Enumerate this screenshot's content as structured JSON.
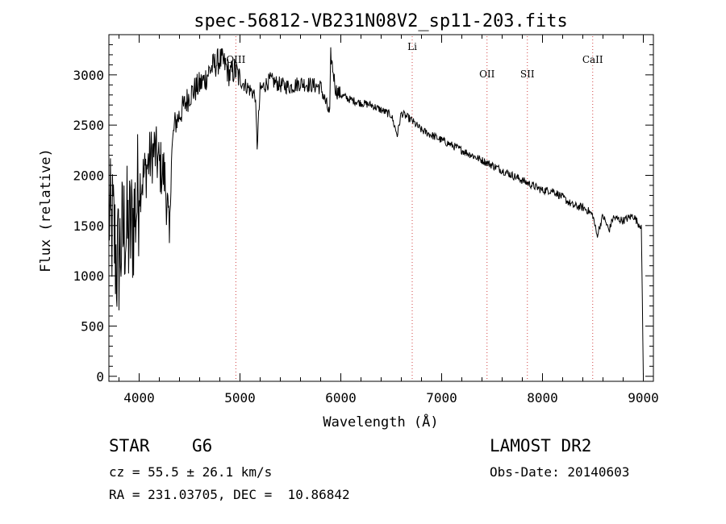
{
  "chart_data": {
    "type": "line",
    "title": "spec-56812-VB231N08V2_sp11-203.fits",
    "xlabel": "Wavelength (Å)",
    "ylabel": "Flux (relative)",
    "xlim": [
      3700,
      9100
    ],
    "ylim": [
      -50,
      3400
    ],
    "xticks": [
      4000,
      5000,
      6000,
      7000,
      8000,
      9000
    ],
    "yticks": [
      0,
      500,
      1000,
      1500,
      2000,
      2500,
      3000
    ],
    "grid": false,
    "spectral_lines": [
      {
        "name": "OIII",
        "x": 4959,
        "color": "#d04040"
      },
      {
        "name": "Li",
        "x": 6708,
        "color": "#d04040"
      },
      {
        "name": "OII",
        "x": 7450,
        "color": "#d04040"
      },
      {
        "name": "SII",
        "x": 7850,
        "color": "#d04040"
      },
      {
        "name": "CaII",
        "x": 8498,
        "color": "#d04040"
      }
    ],
    "series": [
      {
        "color": "#000000",
        "x": [
          3700,
          3720,
          3740,
          3760,
          3780,
          3800,
          3830,
          3860,
          3890,
          3920,
          3950,
          3980,
          4000,
          4050,
          4100,
          4150,
          4200,
          4250,
          4280,
          4300,
          4320,
          4350,
          4400,
          4450,
          4500,
          4550,
          4600,
          4650,
          4700,
          4750,
          4800,
          4850,
          4900,
          4950,
          5000,
          5050,
          5100,
          5150,
          5170,
          5200,
          5250,
          5300,
          5400,
          5500,
          5600,
          5700,
          5800,
          5890,
          5900,
          5950,
          6000,
          6100,
          6200,
          6300,
          6400,
          6500,
          6560,
          6600,
          6700,
          6800,
          6900,
          7000,
          7100,
          7200,
          7300,
          7400,
          7500,
          7600,
          7700,
          7800,
          7900,
          8000,
          8100,
          8200,
          8300,
          8400,
          8450,
          8500,
          8540,
          8600,
          8660,
          8700,
          8800,
          8900,
          8950,
          8980,
          9000
        ],
        "y": [
          1700,
          1400,
          1500,
          1300,
          1100,
          1200,
          1350,
          1500,
          1400,
          1450,
          1600,
          1750,
          1900,
          2000,
          2150,
          2250,
          2100,
          2000,
          1700,
          1300,
          2200,
          2500,
          2600,
          2700,
          2800,
          2850,
          2900,
          2950,
          3050,
          3100,
          3150,
          3100,
          3000,
          3050,
          2950,
          2900,
          2850,
          2800,
          2300,
          2850,
          2900,
          2950,
          2900,
          2880,
          2920,
          2900,
          2880,
          2600,
          3200,
          2850,
          2800,
          2750,
          2720,
          2700,
          2650,
          2600,
          2400,
          2620,
          2550,
          2450,
          2400,
          2350,
          2300,
          2250,
          2200,
          2150,
          2100,
          2050,
          2000,
          1950,
          1900,
          1850,
          1850,
          1780,
          1700,
          1680,
          1650,
          1600,
          1400,
          1600,
          1450,
          1580,
          1550,
          1600,
          1520,
          1500,
          0
        ]
      }
    ]
  },
  "info": {
    "object_class": "STAR",
    "subclass": "G6",
    "survey": "LAMOST DR2",
    "cz": "cz = 55.5 ± 26.1 km/s",
    "obs_date": "Obs-Date: 20140603",
    "coords": "RA = 231.03705, DEC =  10.86842"
  }
}
